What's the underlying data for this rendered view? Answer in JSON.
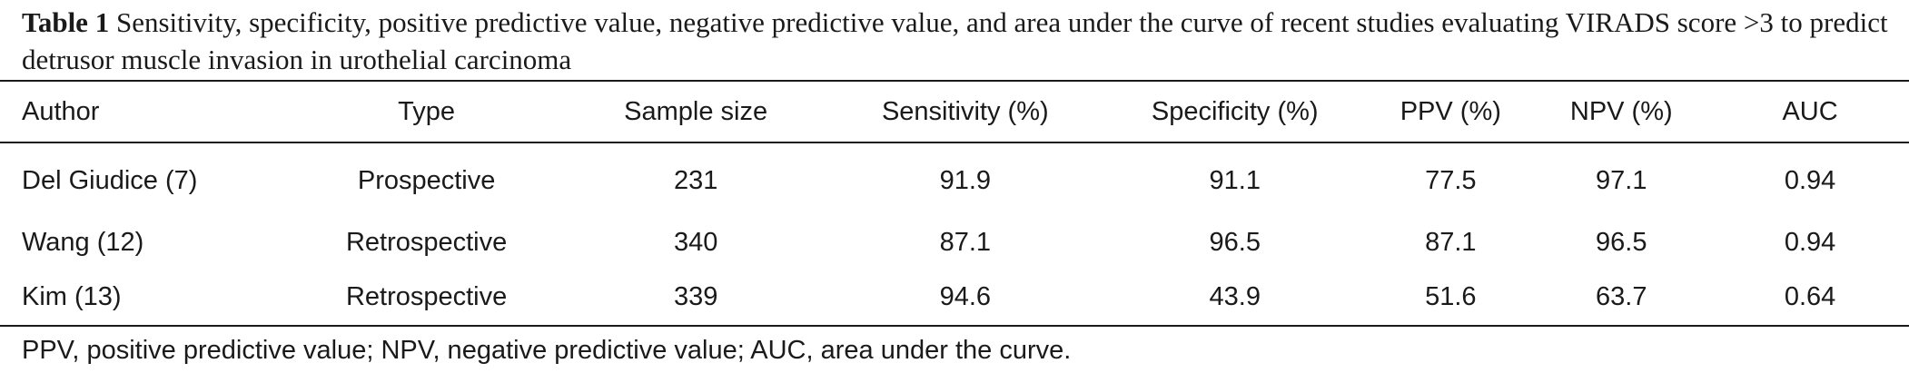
{
  "caption": {
    "label": "Table 1",
    "text": "Sensitivity, specificity, positive predictive value, negative predictive value, and area under the curve of recent studies evaluating VIRADS score >3 to predict detrusor muscle invasion in urothelial carcinoma"
  },
  "table": {
    "headers": [
      "Author",
      "Type",
      "Sample size",
      "Sensitivity (%)",
      "Specificity (%)",
      "PPV (%)",
      "NPV (%)",
      "AUC"
    ],
    "rows": [
      [
        "Del Giudice (7)",
        "Prospective",
        "231",
        "91.9",
        "91.1",
        "77.5",
        "97.1",
        "0.94"
      ],
      [
        "Wang (12)",
        "Retrospective",
        "340",
        "87.1",
        "96.5",
        "87.1",
        "96.5",
        "0.94"
      ],
      [
        "Kim (13)",
        "Retrospective",
        "339",
        "94.6",
        "43.9",
        "51.6",
        "63.7",
        "0.64"
      ]
    ]
  },
  "footnote": "PPV, positive predictive value; NPV, negative predictive value; AUC, area under the curve."
}
